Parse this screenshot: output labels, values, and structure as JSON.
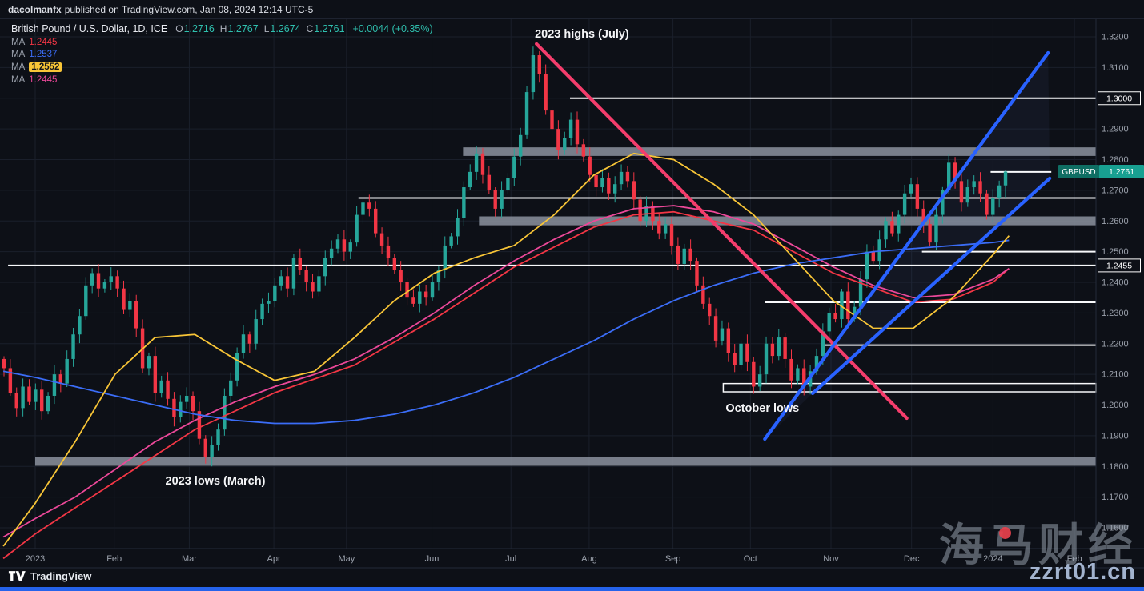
{
  "page": {
    "publisher_line": {
      "author": "dacolmanfx",
      "rest": "published on TradingView.com, Jan 08, 2024 12:14 UTC-5"
    },
    "watermark": {
      "cn_text": "海马财经",
      "domain": "zzrt01.cn"
    },
    "footer": {
      "brand": "TradingView"
    }
  },
  "symbol_header": {
    "title": "British Pound / U.S. Dollar, 1D, ICE",
    "ohlc": [
      {
        "k": "O",
        "v": "1.2716"
      },
      {
        "k": "H",
        "v": "1.2767"
      },
      {
        "k": "L",
        "v": "1.2674"
      },
      {
        "k": "C",
        "v": "1.2761"
      }
    ],
    "change": "+0.0044 (+0.35%)"
  },
  "legend_ma": [
    {
      "label": "MA",
      "value": "1.2445",
      "color": "#f23645",
      "boxed": false
    },
    {
      "label": "MA",
      "value": "1.2537",
      "color": "#3b6df7",
      "boxed": false
    },
    {
      "label": "MA",
      "value": "1.2552",
      "color": "#f8c537",
      "boxed": true
    },
    {
      "label": "MA",
      "value": "1.2445",
      "color": "#ec4899",
      "boxed": false
    }
  ],
  "chart_data": {
    "type": "candlestick",
    "symbol": "GBPUSD",
    "title": "British Pound / U.S. Dollar, 1D, ICE",
    "timeframe": "1D",
    "y_axis": {
      "min": 1.16,
      "max": 1.32,
      "step": 0.01
    },
    "x_axis": {
      "labels": [
        "2023",
        "Feb",
        "Mar",
        "Apr",
        "May",
        "Jun",
        "Jul",
        "Aug",
        "Sep",
        "Oct",
        "Nov",
        "Dec",
        "2024",
        "Feb"
      ],
      "t": [
        0,
        0.99,
        1.93,
        2.99,
        3.9,
        4.97,
        5.96,
        6.94,
        7.99,
        8.96,
        9.97,
        10.98,
        12.0,
        13.02
      ]
    },
    "first_open": 1.215,
    "closes": [
      1.212,
      1.204,
      1.199,
      1.206,
      1.201,
      1.205,
      1.198,
      1.203,
      1.21,
      1.207,
      1.215,
      1.223,
      1.229,
      1.239,
      1.243,
      1.238,
      1.24,
      1.242,
      1.238,
      1.231,
      1.234,
      1.225,
      1.212,
      1.216,
      1.204,
      1.208,
      1.202,
      1.196,
      1.201,
      1.203,
      1.198,
      1.189,
      1.183,
      1.187,
      1.192,
      1.203,
      1.208,
      1.217,
      1.223,
      1.22,
      1.228,
      1.233,
      1.234,
      1.239,
      1.242,
      1.238,
      1.248,
      1.244,
      1.24,
      1.237,
      1.242,
      1.248,
      1.251,
      1.254,
      1.25,
      1.253,
      1.262,
      1.266,
      1.264,
      1.256,
      1.252,
      1.248,
      1.244,
      1.24,
      1.235,
      1.233,
      1.237,
      1.235,
      1.24,
      1.244,
      1.252,
      1.255,
      1.261,
      1.271,
      1.276,
      1.282,
      1.275,
      1.27,
      1.264,
      1.27,
      1.274,
      1.281,
      1.288,
      1.302,
      1.314,
      1.308,
      1.296,
      1.29,
      1.283,
      1.287,
      1.293,
      1.285,
      1.281,
      1.275,
      1.271,
      1.274,
      1.269,
      1.272,
      1.276,
      1.273,
      1.267,
      1.26,
      1.265,
      1.26,
      1.256,
      1.259,
      1.252,
      1.246,
      1.251,
      1.247,
      1.239,
      1.233,
      1.229,
      1.221,
      1.225,
      1.217,
      1.213,
      1.22,
      1.214,
      1.206,
      1.21,
      1.22,
      1.216,
      1.222,
      1.215,
      1.208,
      1.212,
      1.206,
      1.211,
      1.216,
      1.224,
      1.23,
      1.228,
      1.237,
      1.228,
      1.232,
      1.241,
      1.25,
      1.247,
      1.254,
      1.26,
      1.256,
      1.262,
      1.269,
      1.272,
      1.264,
      1.259,
      1.253,
      1.262,
      1.27,
      1.279,
      1.273,
      1.266,
      1.271,
      1.273,
      1.269,
      1.262,
      1.2674,
      1.2716,
      1.2761
    ],
    "last_candle": {
      "o": 1.2716,
      "h": 1.2767,
      "l": 1.2674,
      "c": 1.2761
    },
    "up_color": "#26a69a",
    "down_color": "#f23645",
    "ma_lines": [
      {
        "name": "ma-red",
        "color": "#f23645",
        "points": [
          [
            -0.4,
            1.15
          ],
          [
            0,
            1.158
          ],
          [
            1,
            1.175
          ],
          [
            2,
            1.192
          ],
          [
            3,
            1.204
          ],
          [
            4,
            1.213
          ],
          [
            5,
            1.228
          ],
          [
            6,
            1.245
          ],
          [
            7,
            1.258
          ],
          [
            7.5,
            1.262
          ],
          [
            8,
            1.263
          ],
          [
            9,
            1.257
          ],
          [
            10,
            1.243
          ],
          [
            11,
            1.2335
          ],
          [
            11.5,
            1.2345
          ],
          [
            12,
            1.24
          ],
          [
            12.2,
            1.2445
          ]
        ]
      },
      {
        "name": "ma-pink",
        "color": "#ec4899",
        "points": [
          [
            -0.4,
            1.157
          ],
          [
            0,
            1.163
          ],
          [
            0.5,
            1.17
          ],
          [
            1,
            1.179
          ],
          [
            1.5,
            1.188
          ],
          [
            2,
            1.195
          ],
          [
            2.5,
            1.201
          ],
          [
            3,
            1.206
          ],
          [
            3.5,
            1.21
          ],
          [
            4,
            1.215
          ],
          [
            4.5,
            1.222
          ],
          [
            5,
            1.23
          ],
          [
            5.5,
            1.239
          ],
          [
            6,
            1.247
          ],
          [
            6.5,
            1.254
          ],
          [
            7,
            1.26
          ],
          [
            7.5,
            1.264
          ],
          [
            8,
            1.265
          ],
          [
            8.5,
            1.263
          ],
          [
            9,
            1.259
          ],
          [
            9.5,
            1.252
          ],
          [
            10,
            1.245
          ],
          [
            10.5,
            1.239
          ],
          [
            11,
            1.235
          ],
          [
            11.5,
            1.236
          ],
          [
            12,
            1.241
          ],
          [
            12.2,
            1.2445
          ]
        ]
      },
      {
        "name": "ma-blue",
        "color": "#3b6df7",
        "points": [
          [
            -0.4,
            1.211
          ],
          [
            0,
            1.209
          ],
          [
            0.5,
            1.206
          ],
          [
            1,
            1.203
          ],
          [
            1.5,
            1.2
          ],
          [
            2,
            1.197
          ],
          [
            2.5,
            1.195
          ],
          [
            3,
            1.194
          ],
          [
            3.5,
            1.194
          ],
          [
            4,
            1.195
          ],
          [
            4.5,
            1.197
          ],
          [
            5,
            1.2
          ],
          [
            5.5,
            1.204
          ],
          [
            6,
            1.209
          ],
          [
            6.5,
            1.215
          ],
          [
            7,
            1.221
          ],
          [
            7.5,
            1.228
          ],
          [
            8,
            1.234
          ],
          [
            8.5,
            1.239
          ],
          [
            9,
            1.243
          ],
          [
            9.5,
            1.246
          ],
          [
            10,
            1.248
          ],
          [
            10.5,
            1.25
          ],
          [
            11,
            1.251
          ],
          [
            11.5,
            1.252
          ],
          [
            12,
            1.253
          ],
          [
            12.2,
            1.2537
          ]
        ]
      },
      {
        "name": "ma-yellow",
        "color": "#f8c537",
        "points": [
          [
            -0.4,
            1.154
          ],
          [
            0,
            1.168
          ],
          [
            0.5,
            1.188
          ],
          [
            1,
            1.21
          ],
          [
            1.5,
            1.222
          ],
          [
            2,
            1.223
          ],
          [
            2.5,
            1.215
          ],
          [
            3,
            1.208
          ],
          [
            3.5,
            1.211
          ],
          [
            4,
            1.222
          ],
          [
            4.5,
            1.234
          ],
          [
            5,
            1.243
          ],
          [
            5.5,
            1.248
          ],
          [
            6,
            1.252
          ],
          [
            6.5,
            1.262
          ],
          [
            7,
            1.275
          ],
          [
            7.5,
            1.282
          ],
          [
            8,
            1.28
          ],
          [
            8.5,
            1.272
          ],
          [
            9,
            1.262
          ],
          [
            9.5,
            1.248
          ],
          [
            10,
            1.234
          ],
          [
            10.5,
            1.225
          ],
          [
            11,
            1.225
          ],
          [
            11.5,
            1.235
          ],
          [
            12,
            1.249
          ],
          [
            12.2,
            1.2552
          ]
        ]
      }
    ],
    "trend_lines": [
      {
        "name": "downtrend-from-2023-highs",
        "color": "#f43d6c",
        "width": 4.2,
        "from": [
          6.28,
          1.3177
        ],
        "to": [
          10.92,
          1.1957
        ]
      },
      {
        "name": "ascending-channel-upper",
        "color": "#2962ff",
        "width": 4.2,
        "from": [
          9.14,
          1.1889
        ],
        "to": [
          12.69,
          1.3148
        ]
      },
      {
        "name": "ascending-channel-lower",
        "color": "#2962ff",
        "width": 4.2,
        "from": [
          9.74,
          1.2038
        ],
        "to": [
          12.71,
          1.2739
        ]
      }
    ],
    "h_lines": [
      {
        "price": 1.3,
        "from_t": 6.7,
        "label": "1.3000",
        "boxed": true
      },
      {
        "price": 1.276,
        "from_t": 11.97,
        "to_t": 12.73
      },
      {
        "price": 1.2675,
        "from_t": 4.05
      },
      {
        "price": 1.25,
        "from_t": 11.11
      },
      {
        "price": 1.2455,
        "from_t": -0.34,
        "label": "1.2455",
        "boxed": true
      },
      {
        "price": 1.2335,
        "from_t": 9.14
      },
      {
        "price": 1.2195,
        "from_t": 9.84
      }
    ],
    "h_box": {
      "top": 1.207,
      "bottom": 1.2043,
      "from_t": 8.62
    },
    "zones": [
      {
        "top": 1.284,
        "bottom": 1.2812,
        "from_t": 5.36
      },
      {
        "top": 1.2615,
        "bottom": 1.2586,
        "from_t": 5.56
      },
      {
        "top": 1.183,
        "bottom": 1.1802,
        "from_t": 0.0
      }
    ],
    "annotations": [
      {
        "text": "2023 highs (July)",
        "t": 6.26,
        "price": 1.3198
      },
      {
        "text": "October lows",
        "t": 8.65,
        "price": 1.1978
      },
      {
        "text": "2023 lows (March)",
        "t": 1.63,
        "price": 1.1741
      }
    ],
    "price_label": {
      "symbol": "GBPUSD",
      "value": "1.2761",
      "color": "#18a091"
    }
  }
}
